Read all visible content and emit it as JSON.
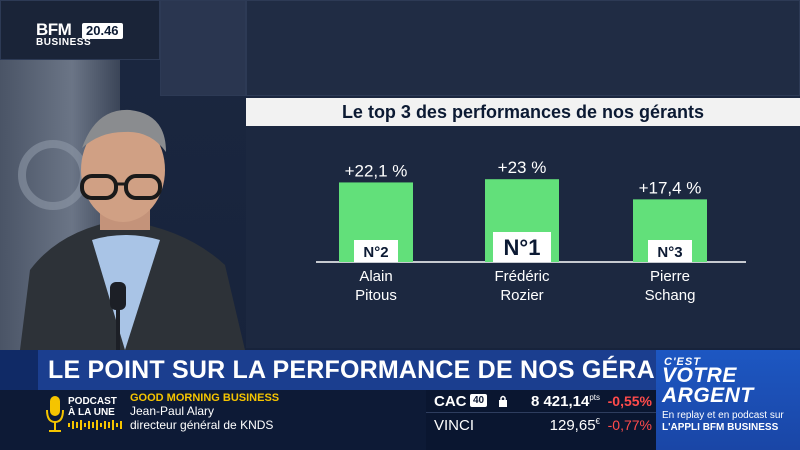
{
  "channel": {
    "logo_top": "BFM",
    "logo_bottom": "BUSINESS",
    "clock": "20.46"
  },
  "screen": {
    "title": "Le top 3 des performances de nos gérants"
  },
  "chart_data": {
    "type": "bar",
    "title": "Le top 3 des performances de nos gérants",
    "categories": [
      "Alain Pitous",
      "Frédéric Rozier",
      "Pierre Schang"
    ],
    "category_lines": [
      [
        "Alain",
        "Pitous"
      ],
      [
        "Frédéric",
        "Rozier"
      ],
      [
        "Pierre",
        "Schang"
      ]
    ],
    "values": [
      22.1,
      23,
      17.4
    ],
    "value_labels": [
      "+22,1 %",
      "+23 %",
      "+17,4 %"
    ],
    "rank_labels": [
      "N°2",
      "N°1",
      "N°3"
    ],
    "ylim": [
      0,
      25
    ],
    "xlabel": "",
    "ylabel": "",
    "bar_color": "#62e07a",
    "grid": false,
    "legend": "none"
  },
  "headline": {
    "text": "LE POINT SUR LA PERFORMANCE DE NOS GÉRANTS"
  },
  "promo": {
    "small": "C'EST",
    "big_1": "VOTRE",
    "big_2": "ARGENT",
    "sub_1": "En replay et en podcast sur",
    "sub_2": "L'APPLI BFM BUSINESS"
  },
  "podcast": {
    "line1": "PODCAST",
    "line2": "À LA UNE",
    "icon": "microphone-icon"
  },
  "show": {
    "name": "GOOD MORNING BUSINESS",
    "guest_name": "Jean-Paul Alary",
    "guest_role": "directeur général de KNDS"
  },
  "ticker": {
    "rows": [
      {
        "name": "CAC",
        "badge": "40",
        "value": "8 421,14",
        "unit": "pts",
        "change": "-0,55%"
      },
      {
        "name": "VINCI",
        "badge": "",
        "value": "129,65",
        "unit": "€",
        "change": "-0,77%"
      }
    ],
    "change_color": "#ff4b4b"
  },
  "colors": {
    "headline_bg": "#1b3e8f",
    "promo_bg": "#1d57c2",
    "show_name": "#f5c400"
  }
}
